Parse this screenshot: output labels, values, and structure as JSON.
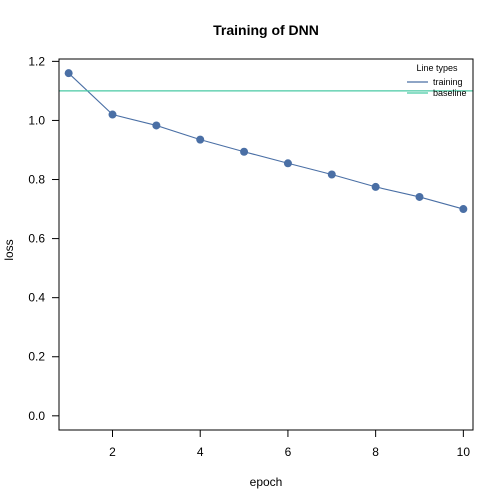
{
  "chart_data": {
    "type": "line",
    "title": "Training of DNN",
    "xlabel": "epoch",
    "ylabel": "loss",
    "xlim": [
      0.78,
      10.22
    ],
    "ylim": [
      -0.048,
      1.208
    ],
    "x_ticks": [
      2,
      4,
      6,
      8,
      10
    ],
    "y_ticks": [
      0.0,
      0.2,
      0.4,
      0.6,
      0.8,
      1.0,
      1.2
    ],
    "y_tick_labels": [
      "0.0",
      "0.2",
      "0.4",
      "0.6",
      "0.8",
      "1.0",
      "1.2"
    ],
    "grid": false,
    "legend": {
      "title": "Line types",
      "placement": "top-right",
      "entries": [
        "training",
        "baseline"
      ]
    },
    "series": [
      {
        "name": "training",
        "color": "#4a6fa5",
        "markers": true,
        "x": [
          1,
          2,
          3,
          4,
          5,
          6,
          7,
          8,
          9,
          10
        ],
        "y": [
          1.16,
          1.02,
          0.983,
          0.935,
          0.894,
          0.855,
          0.817,
          0.775,
          0.741,
          0.7
        ]
      },
      {
        "name": "baseline",
        "color": "#48c9a4",
        "type": "hline",
        "y": 1.1
      }
    ]
  }
}
